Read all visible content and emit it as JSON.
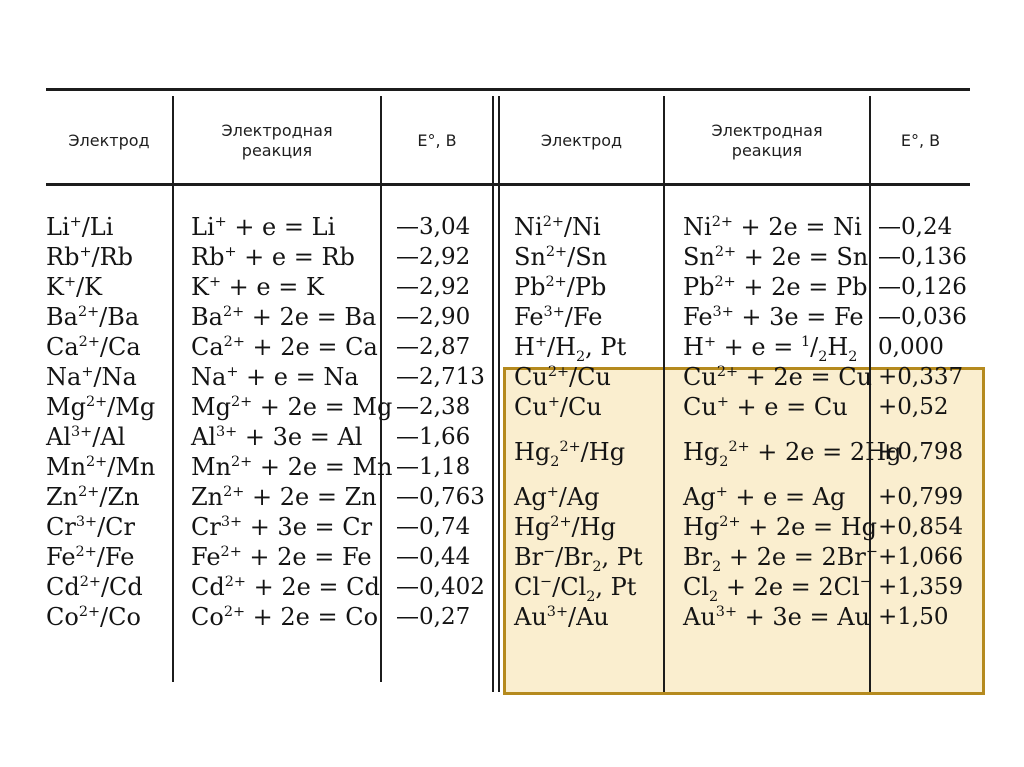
{
  "headers": {
    "electrode": "Электрод",
    "reaction": "Электродная\nреакция",
    "potential": "E°, В"
  },
  "highlight": {
    "color": "#f6e0a8",
    "border": "#b58a1e"
  },
  "left": [
    {
      "electrode": "Li+/Li",
      "reaction": "Li+ + e = Li",
      "potential": "—3,04"
    },
    {
      "electrode": "Rb+/Rb",
      "reaction": "Rb+ + e = Rb",
      "potential": "—2,92"
    },
    {
      "electrode": "K+/K",
      "reaction": "K+ + e = K",
      "potential": "—2,92"
    },
    {
      "electrode": "Ba2+/Ba",
      "reaction": "Ba2+ + 2e = Ba",
      "potential": "—2,90"
    },
    {
      "electrode": "Ca2+/Ca",
      "reaction": "Ca2+ + 2e = Ca",
      "potential": "—2,87"
    },
    {
      "electrode": "Na+/Na",
      "reaction": "Na+ + e = Na",
      "potential": "—2,713"
    },
    {
      "electrode": "Mg2+/Mg",
      "reaction": "Mg2+ + 2e = Mg",
      "potential": "—2,38"
    },
    {
      "electrode": "Al3+/Al",
      "reaction": "Al3+ + 3e = Al",
      "potential": "—1,66"
    },
    {
      "electrode": "Mn2+/Mn",
      "reaction": "Mn2+ + 2e = Mn",
      "potential": "—1,18"
    },
    {
      "electrode": "Zn2+/Zn",
      "reaction": "Zn2+ + 2e = Zn",
      "potential": "—0,763"
    },
    {
      "electrode": "Cr3+/Cr",
      "reaction": "Cr3+ + 3e = Cr",
      "potential": "—0,74"
    },
    {
      "electrode": "Fe2+/Fe",
      "reaction": "Fe2+ + 2e = Fe",
      "potential": "—0,44"
    },
    {
      "electrode": "Cd2+/Cd",
      "reaction": "Cd2+ + 2e = Cd",
      "potential": "—0,402"
    },
    {
      "electrode": "Co2+/Co",
      "reaction": "Co2+ + 2e = Co",
      "potential": "—0,27"
    }
  ],
  "right": [
    {
      "electrode": "Ni2+/Ni",
      "reaction": "Ni2+ + 2e = Ni",
      "potential": "—0,24"
    },
    {
      "electrode": "Sn2+/Sn",
      "reaction": "Sn2+ + 2e = Sn",
      "potential": "—0,136"
    },
    {
      "electrode": "Pb2+/Pb",
      "reaction": "Pb2+ + 2e = Pb",
      "potential": "—0,126"
    },
    {
      "electrode": "Fe3+/Fe",
      "reaction": "Fe3+ + 3e = Fe",
      "potential": "—0,036"
    },
    {
      "electrode": "H+/H2, Pt",
      "reaction": "H+ + e = 1/2H2",
      "potential": "0,000"
    },
    {
      "electrode": "Cu2+/Cu",
      "reaction": "Cu2+ + 2e = Cu",
      "potential": "+0,337"
    },
    {
      "electrode": "Cu+/Cu",
      "reaction": "Cu+ + e = Cu",
      "potential": "+0,52"
    },
    {
      "electrode": "Hg22+/Hg",
      "reaction": "Hg22+ + 2e = 2Hg",
      "potential": "+0,798"
    },
    {
      "electrode": "Ag+/Ag",
      "reaction": "Ag+ + e = Ag",
      "potential": "+0,799"
    },
    {
      "electrode": "Hg2+/Hg",
      "reaction": "Hg2+ + 2e = Hg",
      "potential": "+0,854"
    },
    {
      "electrode": "Br−/Br2, Pt",
      "reaction": "Br2 + 2e = 2Br−",
      "potential": "+1,066"
    },
    {
      "electrode": "Cl−/Cl2, Pt",
      "reaction": "Cl2 + 2e = 2Cl−",
      "potential": "+1,359"
    },
    {
      "electrode": "Au3+/Au",
      "reaction": "Au3+ + 3e = Au",
      "potential": "+1,50"
    }
  ]
}
